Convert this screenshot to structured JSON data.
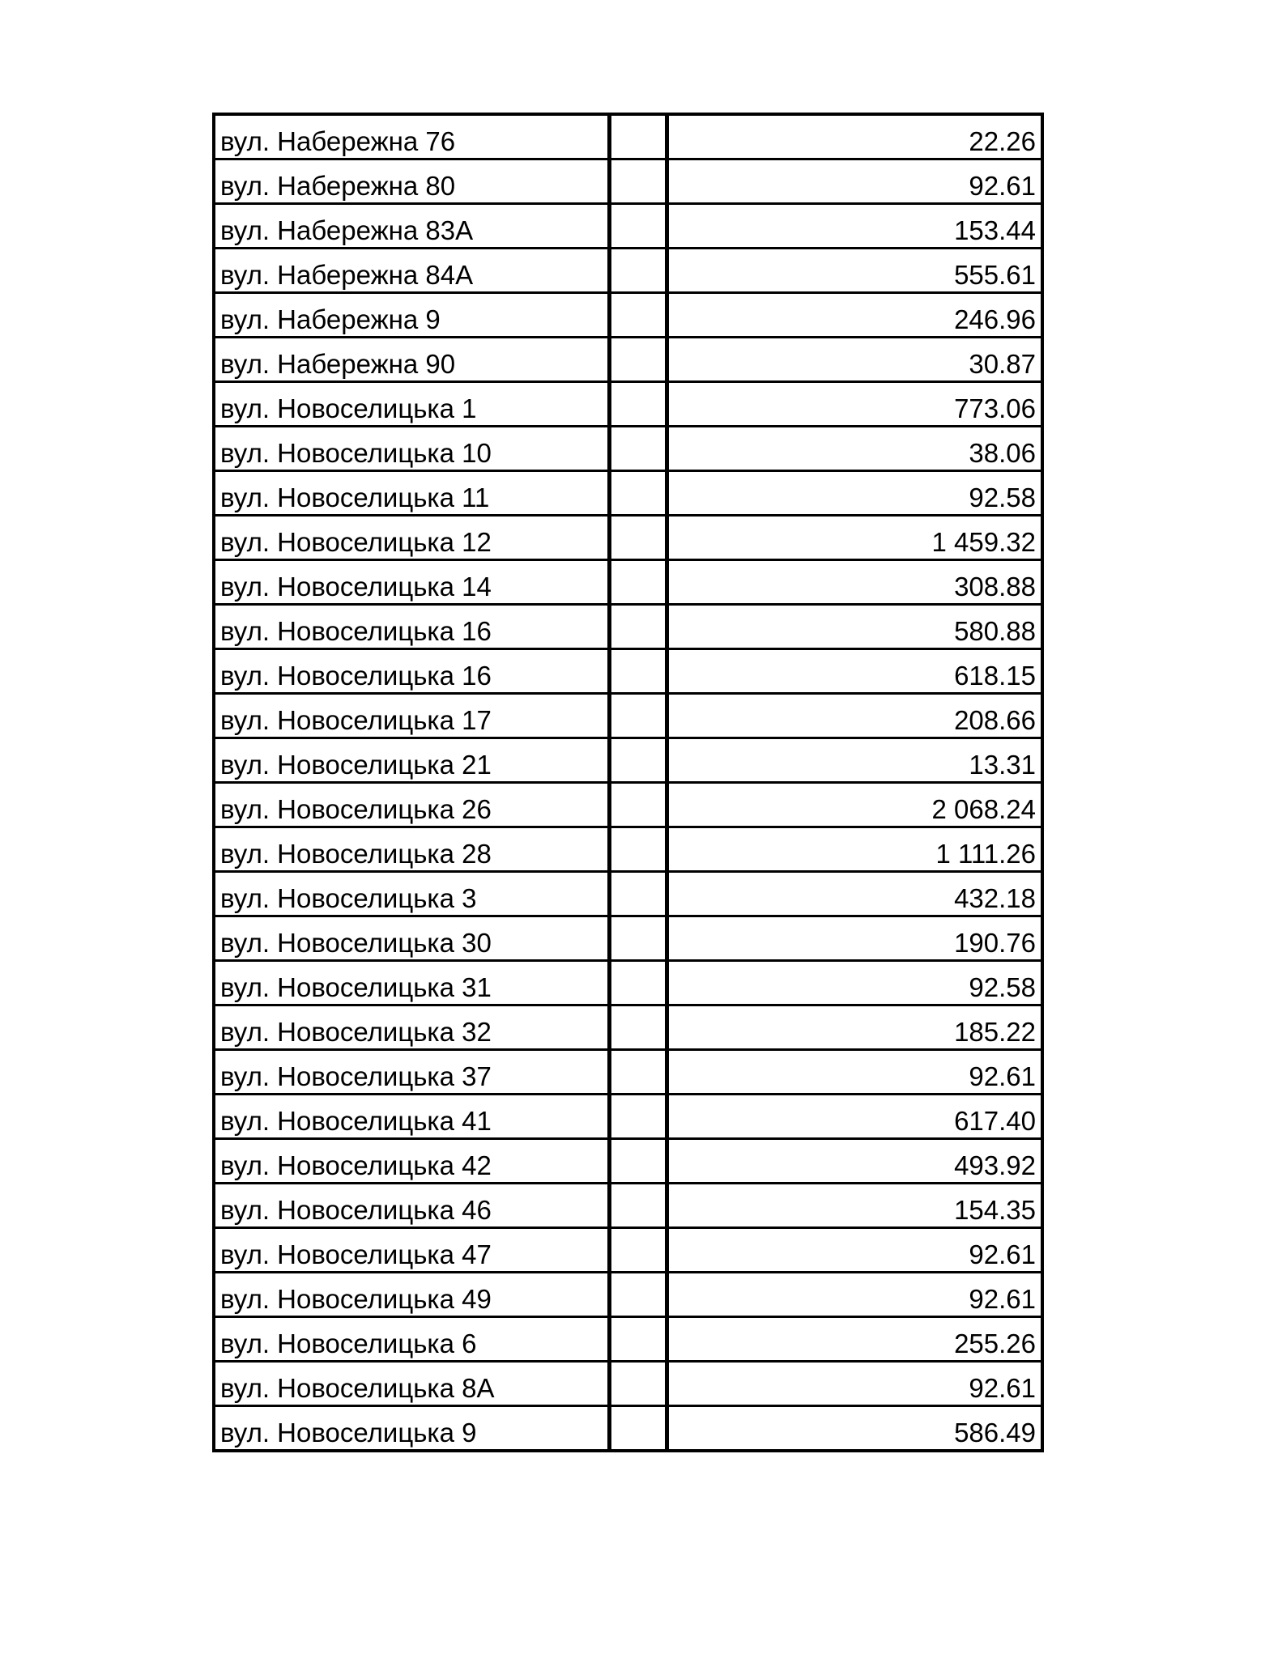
{
  "table": {
    "rows": [
      {
        "address": "вул. Набережна 76",
        "middle": "",
        "value": "22.26"
      },
      {
        "address": "вул. Набережна 80",
        "middle": "",
        "value": "92.61"
      },
      {
        "address": "вул. Набережна 83А",
        "middle": "",
        "value": "153.44"
      },
      {
        "address": "вул. Набережна 84А",
        "middle": "",
        "value": "555.61"
      },
      {
        "address": "вул. Набережна 9",
        "middle": "",
        "value": "246.96"
      },
      {
        "address": "вул. Набережна 90",
        "middle": "",
        "value": "30.87"
      },
      {
        "address": "вул. Новоселицька 1",
        "middle": "",
        "value": "773.06"
      },
      {
        "address": "вул. Новоселицька 10",
        "middle": "",
        "value": "38.06"
      },
      {
        "address": "вул. Новоселицька 11",
        "middle": "",
        "value": "92.58"
      },
      {
        "address": "вул. Новоселицька 12",
        "middle": "",
        "value": "1 459.32"
      },
      {
        "address": "вул. Новоселицька 14",
        "middle": "",
        "value": "308.88"
      },
      {
        "address": "вул. Новоселицька 16",
        "middle": "",
        "value": "580.88"
      },
      {
        "address": "вул. Новоселицька 16",
        "middle": "",
        "value": "618.15"
      },
      {
        "address": "вул. Новоселицька 17",
        "middle": "",
        "value": "208.66"
      },
      {
        "address": "вул. Новоселицька 21",
        "middle": "",
        "value": "13.31"
      },
      {
        "address": "вул. Новоселицька 26",
        "middle": "",
        "value": "2 068.24"
      },
      {
        "address": "вул. Новоселицька 28",
        "middle": "",
        "value": "1 111.26"
      },
      {
        "address": "вул. Новоселицька 3",
        "middle": "",
        "value": "432.18"
      },
      {
        "address": "вул. Новоселицька 30",
        "middle": "",
        "value": "190.76"
      },
      {
        "address": "вул. Новоселицька 31",
        "middle": "",
        "value": "92.58"
      },
      {
        "address": "вул. Новоселицька 32",
        "middle": "",
        "value": "185.22"
      },
      {
        "address": "вул. Новоселицька 37",
        "middle": "",
        "value": "92.61"
      },
      {
        "address": "вул. Новоселицька 41",
        "middle": "",
        "value": "617.40"
      },
      {
        "address": "вул. Новоселицька 42",
        "middle": "",
        "value": "493.92"
      },
      {
        "address": "вул. Новоселицька 46",
        "middle": "",
        "value": "154.35"
      },
      {
        "address": "вул. Новоселицька 47",
        "middle": "",
        "value": "92.61"
      },
      {
        "address": "вул. Новоселицька 49",
        "middle": "",
        "value": "92.61"
      },
      {
        "address": "вул. Новоселицька 6",
        "middle": "",
        "value": "255.26"
      },
      {
        "address": "вул. Новоселицька 8А",
        "middle": "",
        "value": "92.61"
      },
      {
        "address": "вул. Новоселицька 9",
        "middle": "",
        "value": "586.49"
      }
    ]
  }
}
